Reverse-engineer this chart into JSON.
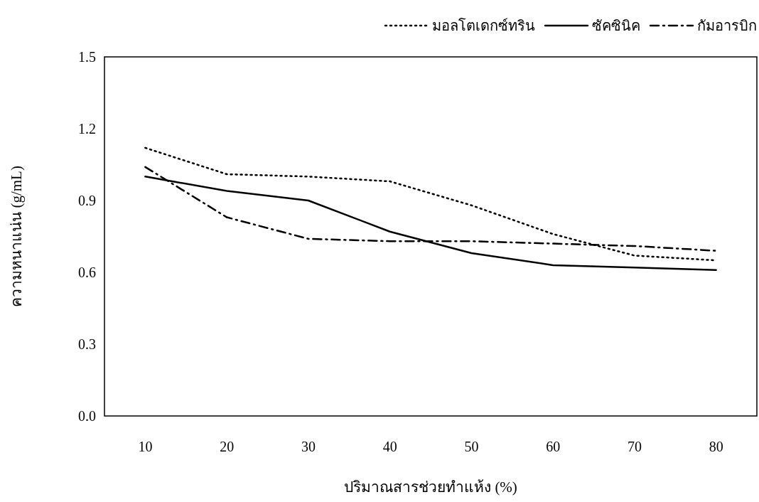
{
  "chart_data": {
    "type": "line",
    "xlabel": "ปริมาณสารช่วยทำแห้ง (%)",
    "ylabel": "ความหนาแน่น (g/mL)",
    "categories": [
      "10",
      "20",
      "30",
      "40",
      "50",
      "60",
      "70",
      "80"
    ],
    "ylim": [
      0,
      1.5
    ],
    "yticks": [
      {
        "value": 0,
        "label": "0.0"
      },
      0.3,
      0.6,
      0.9,
      1.2,
      1.5
    ],
    "legend": "top right",
    "grid": false,
    "series": [
      {
        "name": "มอลโตเดกซ์ทริน",
        "color": "#000000",
        "line_style": "dotted",
        "values": [
          1.12,
          1.01,
          1.0,
          0.98,
          0.88,
          0.76,
          0.67,
          0.65
        ]
      },
      {
        "name": "ซัคซินิค",
        "color": "#000000",
        "line_style": "solid",
        "values": [
          1.0,
          0.94,
          0.9,
          0.77,
          0.68,
          0.63,
          0.62,
          0.61
        ]
      },
      {
        "name": "กัมอารบิก",
        "color": "#000000",
        "line_style": "dashdot",
        "values": [
          1.04,
          0.83,
          0.74,
          0.73,
          0.73,
          0.72,
          0.71,
          0.69
        ]
      }
    ]
  }
}
